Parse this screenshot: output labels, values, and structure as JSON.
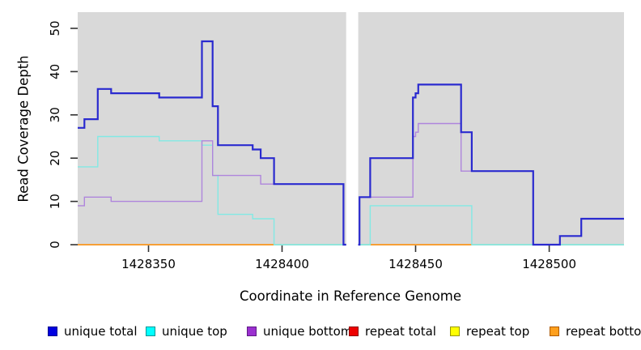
{
  "figure": {
    "bg": "#ffffff",
    "plot_bg": "#d9d9d9"
  },
  "y_axis": {
    "label": "Read Coverage Depth",
    "ticks": [
      "0",
      "10",
      "20",
      "30",
      "40",
      "50"
    ],
    "tick_values": [
      0,
      10,
      20,
      30,
      40,
      50
    ],
    "range": [
      0,
      53.7
    ]
  },
  "x_axis": {
    "label": "Coordinate in Reference Genome",
    "ticks": [
      "1428350",
      "1428400",
      "1428450",
      "1428500"
    ],
    "tick_values": [
      1428350,
      1428400,
      1428450,
      1428500
    ],
    "range": [
      1428323.5,
      1428528
    ]
  },
  "chart_data": {
    "type": "line",
    "subtype": "step",
    "title": "",
    "xlabel": "Coordinate in Reference Genome",
    "ylabel": "Read Coverage Depth",
    "xlim": [
      1428323.5,
      1428528
    ],
    "ylim": [
      0,
      53.7
    ],
    "grid": false,
    "legend_position": "bottom",
    "no_data_gap": {
      "from": 1428424,
      "to": 1428428.5
    },
    "draw_order": [
      "unique top",
      "unique bottom",
      "unique total"
    ],
    "series": [
      {
        "name": "unique total",
        "line_color": "#2a2acf",
        "line_width": 2.2,
        "draw": true,
        "segments": [
          {
            "points": [
              [
                1428323.5,
                27
              ],
              [
                1428326,
                29
              ],
              [
                1428331,
                36
              ],
              [
                1428336,
                35
              ],
              [
                1428354,
                34
              ],
              [
                1428370,
                47
              ],
              [
                1428374,
                32
              ],
              [
                1428376,
                23
              ],
              [
                1428389,
                22
              ],
              [
                1428392,
                20
              ],
              [
                1428397,
                14
              ],
              [
                1428423,
                0
              ]
            ],
            "end": 1428424
          },
          {
            "points": [
              [
                1428428.5,
                0
              ],
              [
                1428429,
                11
              ],
              [
                1428433,
                20
              ],
              [
                1428449,
                34
              ],
              [
                1428450,
                35
              ],
              [
                1428451,
                37
              ],
              [
                1428467,
                26
              ],
              [
                1428471,
                17
              ],
              [
                1428494,
                0
              ],
              [
                1428504,
                2
              ],
              [
                1428512,
                6
              ]
            ],
            "end": 1428528
          }
        ]
      },
      {
        "name": "unique top",
        "line_color": "#82e9e4",
        "line_width": 1.4,
        "draw": true,
        "segments": [
          {
            "points": [
              [
                1428323.5,
                18
              ],
              [
                1428331,
                25
              ],
              [
                1428354,
                24
              ],
              [
                1428370,
                23
              ],
              [
                1428374,
                16
              ],
              [
                1428376,
                7
              ],
              [
                1428389,
                6
              ],
              [
                1428397,
                0
              ]
            ],
            "end": 1428424
          },
          {
            "points": [
              [
                1428428.5,
                0
              ],
              [
                1428433,
                9
              ],
              [
                1428471,
                0
              ]
            ],
            "end": 1428528
          }
        ]
      },
      {
        "name": "unique bottom",
        "line_color": "#af85dc",
        "line_width": 1.4,
        "draw": true,
        "segments": [
          {
            "points": [
              [
                1428323.5,
                9
              ],
              [
                1428326,
                11
              ],
              [
                1428336,
                10
              ],
              [
                1428370,
                24
              ],
              [
                1428374,
                16
              ],
              [
                1428392,
                14
              ],
              [
                1428423,
                0
              ]
            ],
            "end": 1428424
          },
          {
            "points": [
              [
                1428428.5,
                0
              ],
              [
                1428429,
                11
              ],
              [
                1428449,
                25
              ],
              [
                1428450,
                26
              ],
              [
                1428451,
                28
              ],
              [
                1428467,
                17
              ],
              [
                1428494,
                0
              ],
              [
                1428504,
                2
              ],
              [
                1428512,
                6
              ]
            ],
            "end": 1428528
          }
        ]
      },
      {
        "name": "repeat total",
        "line_color": "#cc0000",
        "line_width": 1.4,
        "draw": false,
        "note": "constant 0 across plotted range",
        "segments": [
          {
            "points": [
              [
                1428323.5,
                0
              ]
            ],
            "end": 1428424
          },
          {
            "points": [
              [
                1428428.5,
                0
              ]
            ],
            "end": 1428528
          }
        ]
      },
      {
        "name": "repeat top",
        "line_color": "#e8e800",
        "line_width": 1.4,
        "draw": false,
        "note": "constant 0 across plotted range",
        "segments": [
          {
            "points": [
              [
                1428323.5,
                0
              ]
            ],
            "end": 1428424
          },
          {
            "points": [
              [
                1428428.5,
                0
              ]
            ],
            "end": 1428528
          }
        ]
      },
      {
        "name": "repeat bottom",
        "line_color": "#ff8c00",
        "line_width": 1.6,
        "draw": false,
        "note": "constant 0 across plotted range; visible as orange baseline segments",
        "segments": [
          {
            "points": [
              [
                1428323.5,
                0
              ]
            ],
            "end": 1428424
          },
          {
            "points": [
              [
                1428428.5,
                0
              ]
            ],
            "end": 1428528
          }
        ]
      }
    ],
    "baseline_decor": [
      {
        "color": "#ff8c00",
        "from": 1428323.5,
        "to": 1428397
      },
      {
        "color": "#9fd49f",
        "from": 1428397,
        "to": 1428424
      },
      {
        "color": "#9fd49f",
        "from": 1428428.5,
        "to": 1428433
      },
      {
        "color": "#ff8c00",
        "from": 1428433,
        "to": 1428471
      },
      {
        "color": "#9fd49f",
        "from": 1428471,
        "to": 1428528
      }
    ]
  },
  "legend": {
    "items": [
      {
        "label": "unique total",
        "fill": "#0000e0",
        "border": "#000090"
      },
      {
        "label": "unique top",
        "fill": "#00ffff",
        "border": "#009595"
      },
      {
        "label": "unique bottom",
        "fill": "#9b30d0",
        "border": "#5e1a85"
      },
      {
        "label": "repeat total",
        "fill": "#ee0000",
        "border": "#8f0000"
      },
      {
        "label": "repeat top",
        "fill": "#ffff00",
        "border": "#979700"
      },
      {
        "label": "repeat bottom",
        "fill": "#ffa01e",
        "border": "#b05a00"
      }
    ]
  }
}
